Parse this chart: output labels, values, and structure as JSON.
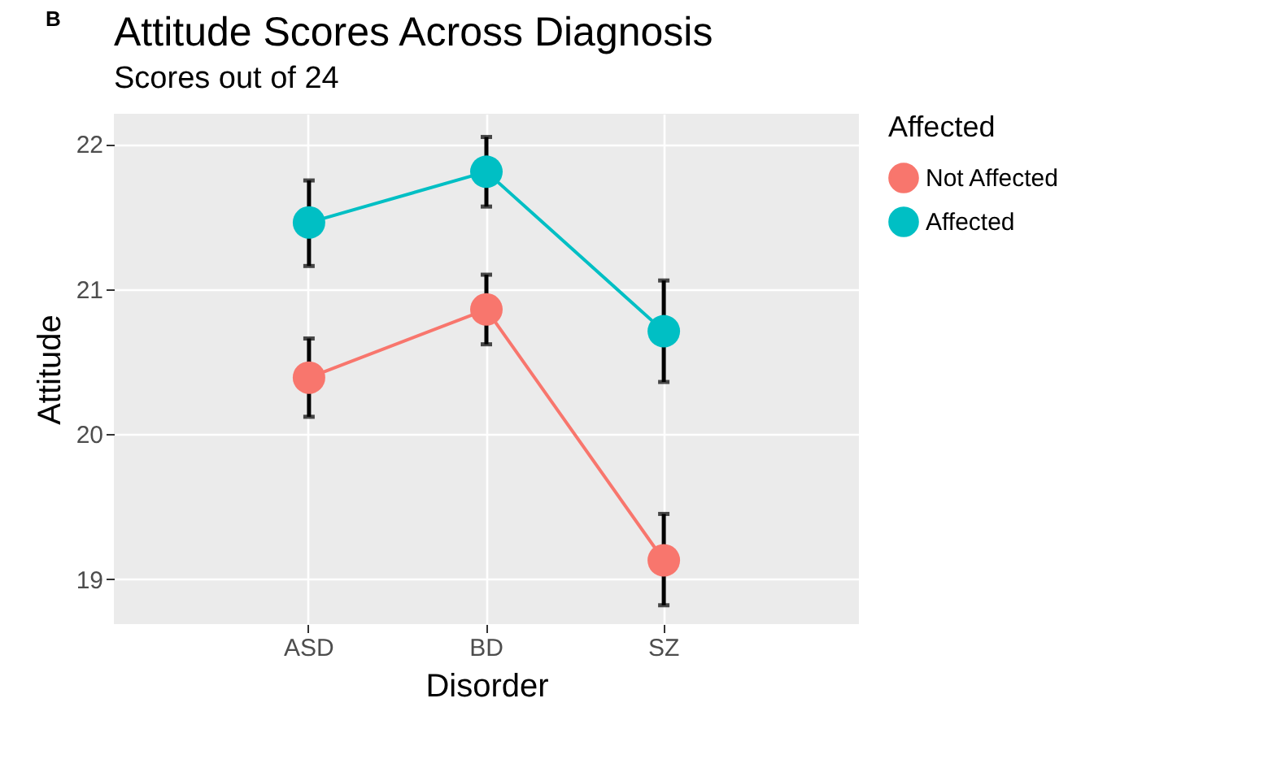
{
  "chart_data": {
    "type": "line",
    "title": "Attitude Scores Across Diagnosis",
    "subtitle": "Scores out of 24",
    "xlabel": "Disorder",
    "ylabel": "Attitude",
    "legend_title": "Affected",
    "annotations": [
      "B"
    ],
    "categories": [
      "ASD",
      "BD",
      "SZ"
    ],
    "series": [
      {
        "name": "Not Affected",
        "color": "#f8766d",
        "values": [
          20.39,
          20.86,
          19.13
        ],
        "errors": [
          [
            20.12,
            20.66
          ],
          [
            20.62,
            21.1
          ],
          [
            18.82,
            19.45
          ]
        ]
      },
      {
        "name": "Affected",
        "color": "#00bfc4",
        "values": [
          21.46,
          21.81,
          20.71
        ],
        "errors": [
          [
            21.16,
            21.75
          ],
          [
            21.57,
            22.05
          ],
          [
            20.36,
            21.06
          ]
        ]
      }
    ],
    "ylim": [
      18.69,
      22.21
    ],
    "yticks": [
      19,
      20,
      21,
      22
    ],
    "grid": true,
    "legend": "right",
    "marker": "circle",
    "line_style": "solid"
  }
}
